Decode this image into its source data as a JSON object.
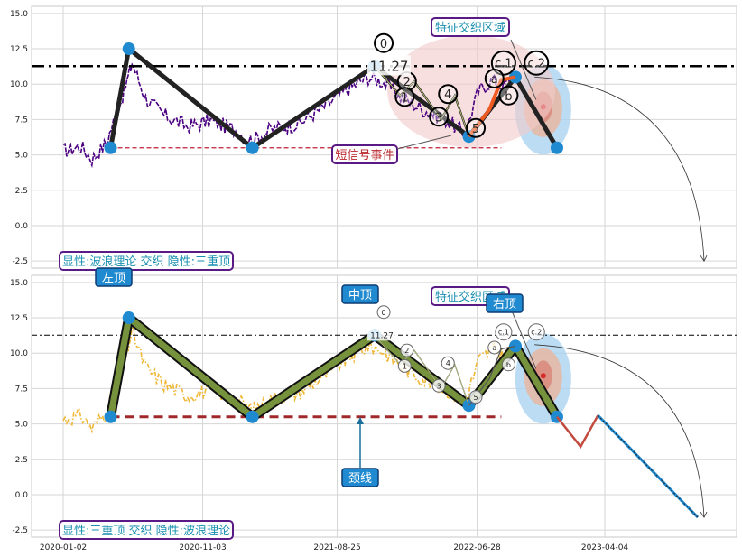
{
  "chart_data": [
    {
      "type": "line",
      "panel": "top",
      "ylim": [
        -3,
        15.5
      ],
      "yticks": [
        "-2.5",
        "0.0",
        "2.5",
        "5.0",
        "7.5",
        "10.0",
        "12.5",
        "15.0"
      ],
      "hline": 11.27,
      "neckline": 5.5,
      "price_color": "#4b0082",
      "zigzag": [
        {
          "x": "2020-04-15",
          "y": 5.5
        },
        {
          "x": "2020-05-25",
          "y": 12.5
        },
        {
          "x": "2021-02-20",
          "y": 5.5
        },
        {
          "x": "2021-11-15",
          "y": 11.27
        },
        {
          "x": "2022-06-10",
          "y": 6.3
        },
        {
          "x": "2022-09-20",
          "y": 10.5
        },
        {
          "x": "2022-12-20",
          "y": 5.5
        }
      ],
      "wave_labels": [
        "0",
        "2",
        "1",
        "4",
        "3",
        "5",
        "c.1",
        "a",
        "b",
        "c.2"
      ],
      "price_label": "11.27",
      "annotations": {
        "feature_zone": "特征交织区域",
        "short_signal": "短信号事件",
        "caption": "显性:波浪理论 交织 隐性:三重顶"
      }
    },
    {
      "type": "line",
      "panel": "bottom",
      "ylim": [
        -3,
        15.5
      ],
      "yticks": [
        "-2.5",
        "0.0",
        "2.5",
        "5.0",
        "7.5",
        "10.0",
        "12.5",
        "15.0"
      ],
      "xticks": [
        "2020-01-02",
        "2020-11-03",
        "2021-08-25",
        "2022-06-28",
        "2023-04-04"
      ],
      "hline": 11.27,
      "neckline": 5.5,
      "price_color": "#f0b838",
      "zigzag": [
        {
          "x": "2020-04-15",
          "y": 5.5
        },
        {
          "x": "2020-05-25",
          "y": 12.5
        },
        {
          "x": "2021-02-20",
          "y": 5.5
        },
        {
          "x": "2021-11-15",
          "y": 11.27
        },
        {
          "x": "2022-06-10",
          "y": 6.3
        },
        {
          "x": "2022-09-20",
          "y": 10.5
        },
        {
          "x": "2022-12-20",
          "y": 5.5
        }
      ],
      "projection": [
        {
          "x": "2022-12-20",
          "y": 5.5
        },
        {
          "x": "2023-02-10",
          "y": 3.4
        },
        {
          "x": "2023-03-20",
          "y": 5.6
        },
        {
          "x": "2023-10-25",
          "y": -1.6
        }
      ],
      "wave_labels": [
        "0",
        "2",
        "1",
        "4",
        "3",
        "5",
        "c.1",
        "a",
        "b",
        "c.2"
      ],
      "price_label": "11.27",
      "annotations": {
        "left_top": "左顶",
        "middle_top": "中顶",
        "right_top": "右顶",
        "neckline": "颈线",
        "feature_zone": "特征交织区域",
        "caption": "显性:三重顶 交织 隐性:波浪理论"
      }
    }
  ]
}
